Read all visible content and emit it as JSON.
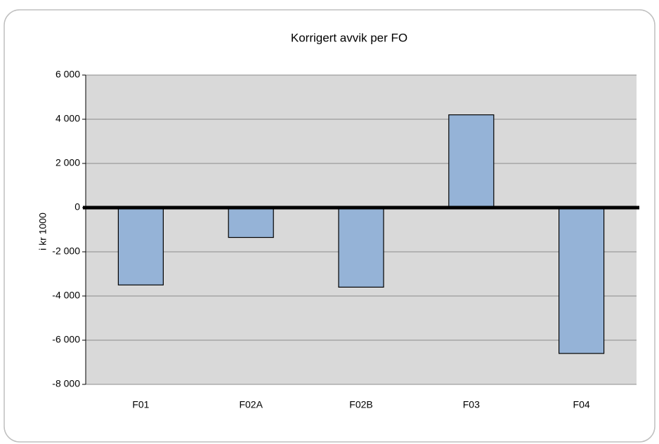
{
  "chart_data": {
    "type": "bar",
    "title": "Korrigert avvik per FO",
    "y_label": "i kr 1000",
    "categories": [
      "F01",
      "F02A",
      "F02B",
      "F03",
      "F04"
    ],
    "values": [
      -3500,
      -1350,
      -3600,
      4200,
      -6600
    ],
    "color": "#95b3d7",
    "ylim": [
      -8000,
      6000
    ],
    "yticks": [
      {
        "value": -8000,
        "label": "-8 000"
      },
      {
        "value": -6000,
        "label": "-6 000"
      },
      {
        "value": -4000,
        "label": "-4 000"
      },
      {
        "value": -2000,
        "label": "-2 000"
      },
      0,
      {
        "value": 2000,
        "label": "2 000"
      },
      {
        "value": 4000,
        "label": "4 000"
      },
      {
        "value": 6000,
        "label": "6 000"
      }
    ],
    "grid": true
  }
}
